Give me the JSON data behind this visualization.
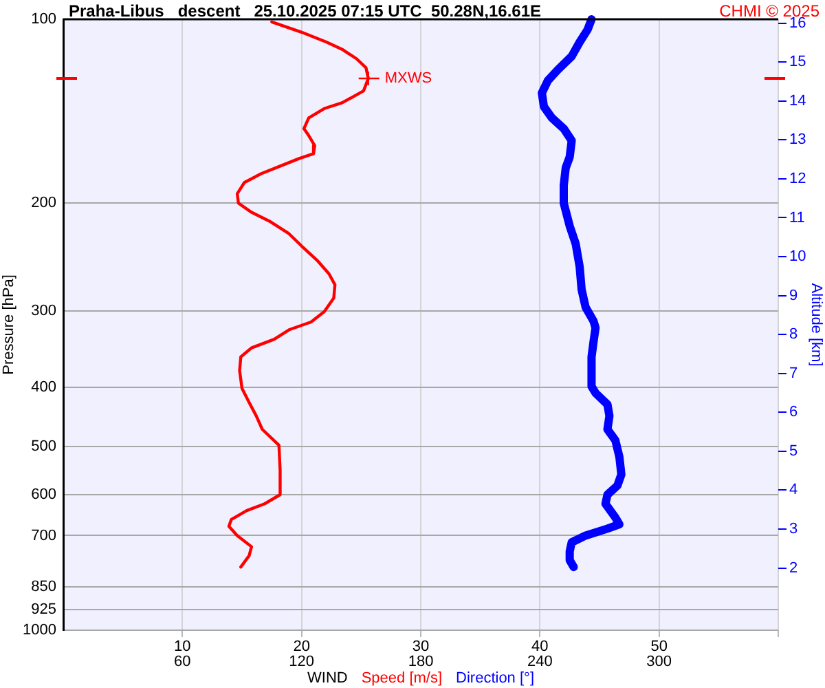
{
  "chart_data": {
    "type": "line",
    "title": "Praha-Libus   descent   25.10.2025 07:15 UTC  50.28N,16.61E",
    "xlabel": "WIND",
    "ylabel": "Pressure [hPa]",
    "y2label": "Altitude [km]",
    "annotations": [
      "CHMI © 2025",
      {
        "text": "MXWS",
        "x": 25.6,
        "y": 125
      }
    ],
    "series": [
      {
        "name": "Speed [m/s]",
        "color": "#ff0000",
        "x": [
          17.5,
          20.0,
          22.1,
          23.4,
          24.6,
          25.4,
          25.6,
          25.2,
          23.4,
          21.9,
          20.6,
          20.2,
          20.6,
          21.1,
          21.0,
          19.8,
          18.5,
          16.6,
          15.2,
          14.6,
          14.7,
          15.8,
          17.3,
          18.9,
          20.0,
          21.3,
          22.3,
          22.8,
          22.7,
          21.9,
          20.8,
          19.0,
          17.7,
          15.8,
          14.9,
          14.8,
          15.0,
          15.6,
          16.2,
          16.7,
          18.1,
          18.2,
          18.2,
          16.9,
          15.4,
          14.1,
          13.9,
          14.6,
          15.8,
          15.6,
          14.9
        ],
        "values": [
          101,
          105,
          109,
          112,
          116,
          120,
          125,
          131,
          137,
          140,
          145,
          151,
          155,
          161,
          166,
          169,
          173,
          179,
          185,
          193,
          200,
          207,
          214,
          224,
          235,
          248,
          261,
          272,
          286,
          301,
          313,
          322,
          334,
          345,
          357,
          376,
          402,
          424,
          446,
          469,
          498,
          547,
          600,
          621,
          637,
          659,
          676,
          700,
          730,
          755,
          788
        ]
      },
      {
        "name": "Direction [°]",
        "color": "#0000ff",
        "axis": "x2",
        "x": [
          266,
          264,
          260,
          256,
          249,
          244,
          241,
          242,
          246,
          252,
          256,
          255,
          253,
          252,
          252,
          255,
          258,
          260,
          261,
          263,
          267,
          268,
          267,
          266,
          266,
          268,
          274,
          275,
          274,
          278,
          280,
          281,
          279,
          274,
          273,
          278,
          280,
          274,
          263,
          256,
          255,
          255,
          257
        ],
        "values": [
          100,
          104,
          109,
          115,
          121,
          126,
          132,
          139,
          145,
          151,
          158,
          168,
          175,
          187,
          200,
          218,
          233,
          254,
          277,
          296,
          312,
          320,
          337,
          357,
          399,
          409,
          427,
          446,
          469,
          489,
          520,
          556,
          580,
          600,
          621,
          654,
          671,
          682,
          700,
          718,
          743,
          768,
          788
        ]
      }
    ],
    "xlim": [
      0,
      60
    ],
    "xticks": [
      10,
      20,
      30,
      40,
      50,
      {
        "value": 60,
        "label": null
      }
    ],
    "x2lim": [
      0,
      360
    ],
    "x2ticks": [
      60,
      120,
      180,
      240,
      300
    ],
    "ylim": [
      1000,
      100
    ],
    "yticks": [
      100,
      200,
      300,
      400,
      500,
      600,
      700,
      850,
      925,
      1000
    ],
    "y2lim": [
      0.4,
      16.1
    ],
    "y2ticks": [
      2,
      3,
      4,
      5,
      6,
      7,
      8,
      9,
      10,
      11,
      12,
      13,
      14,
      15,
      16
    ],
    "log": "y",
    "grid": true,
    "legend": "bottom",
    "marker": "none"
  }
}
